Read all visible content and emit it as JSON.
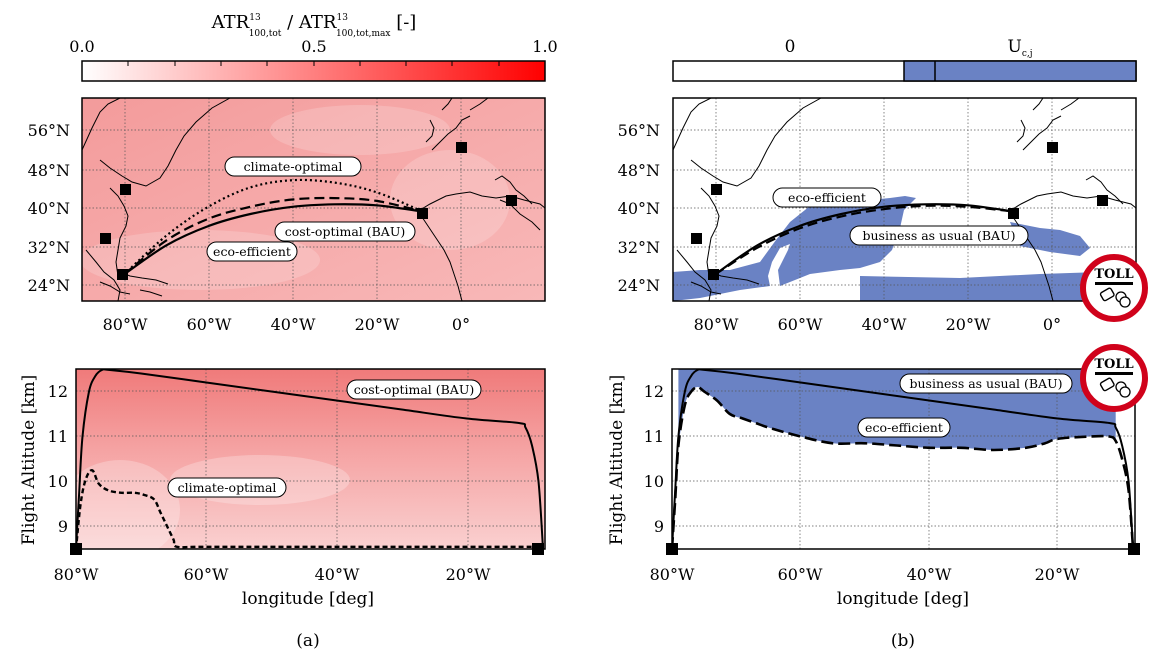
{
  "panel_a": {
    "caption": "(a)",
    "colorbar": {
      "label_main": "ATR",
      "label_sup": "13",
      "label_sub": "100,tot",
      "label_sep": " / ATR",
      "label_sup2": "13",
      "label_sub2": "100,tot,max",
      "label_unit": " [-]",
      "ticks": [
        "0.0",
        "0.5",
        "1.0"
      ],
      "range": [
        0,
        1
      ],
      "color_low": "#ffffff",
      "color_high": "#ff0000"
    },
    "map": {
      "lat_ticks": [
        "56°N",
        "48°N",
        "40°N",
        "32°N",
        "24°N"
      ],
      "lon_ticks": [
        "80°W",
        "60°W",
        "40°W",
        "20°W",
        "0°"
      ],
      "labels": {
        "climate": "climate-optimal",
        "cost": "cost-optimal (BAU)",
        "eco": "eco-efficient"
      }
    },
    "profile": {
      "ylabel": "Flight Altitude [km]",
      "xlabel": "longitude [deg]",
      "y_ticks": [
        "12",
        "11",
        "10",
        "9"
      ],
      "x_ticks": [
        "80°W",
        "60°W",
        "40°W",
        "20°W"
      ],
      "labels": {
        "cost": "cost-optimal (BAU)",
        "climate": "climate-optimal"
      }
    }
  },
  "panel_b": {
    "caption": "(b)",
    "colorbar": {
      "left_label": "0",
      "right_label_main": "U",
      "right_label_sub": "c,j",
      "fill_color": "#6a82c4"
    },
    "map": {
      "lat_ticks": [
        "56°N",
        "48°N",
        "40°N",
        "32°N",
        "24°N"
      ],
      "lon_ticks": [
        "80°W",
        "60°W",
        "40°W",
        "20°W",
        "0°"
      ],
      "labels": {
        "eco": "eco-efficient",
        "bau": "business as usual (BAU)"
      }
    },
    "profile": {
      "ylabel": "Flight Altitude [km]",
      "xlabel": "longitude [deg]",
      "y_ticks": [
        "12",
        "11",
        "10",
        "9"
      ],
      "x_ticks": [
        "80°W",
        "60°W",
        "40°W",
        "20°W"
      ],
      "labels": {
        "bau": "business as usual (BAU)",
        "eco": "eco-efficient"
      }
    },
    "toll_text": "TOLL",
    "toll_icon": "hand-with-coins-icon"
  },
  "chart_data": [
    {
      "type": "line",
      "panel": "a-map",
      "xlim": [
        -90,
        20
      ],
      "ylim": [
        20,
        62
      ],
      "series": [
        {
          "name": "climate-optimal",
          "style": "dotted",
          "x": [
            -80,
            -70,
            -60,
            -50,
            -40,
            -30,
            -20,
            -9
          ],
          "y": [
            25.5,
            33.5,
            39.5,
            43.5,
            45,
            44.5,
            42.5,
            38.5
          ]
        },
        {
          "name": "cost-optimal (BAU)",
          "style": "solid",
          "x": [
            -80,
            -70,
            -60,
            -50,
            -40,
            -30,
            -20,
            -9
          ],
          "y": [
            25.5,
            31.5,
            35.5,
            38,
            39.5,
            40,
            39.8,
            38.5
          ]
        },
        {
          "name": "eco-efficient",
          "style": "dashed",
          "x": [
            -80,
            -70,
            -60,
            -50,
            -40,
            -30,
            -20,
            -9
          ],
          "y": [
            25.5,
            32.5,
            37,
            39.5,
            41,
            41.3,
            40.7,
            38.5
          ]
        }
      ]
    },
    {
      "type": "line",
      "panel": "a-profile",
      "xlim": [
        -80,
        -8
      ],
      "ylim": [
        8.5,
        12.5
      ],
      "series": [
        {
          "name": "cost-optimal (BAU)",
          "style": "solid",
          "x": [
            -80,
            -79.5,
            -79,
            -78,
            -77,
            -76,
            -75,
            -70,
            -60,
            -50,
            -40,
            -30,
            -20,
            -12,
            -11,
            -10,
            -9,
            -8.3
          ],
          "y": [
            8.5,
            9.8,
            11.0,
            12.0,
            12.35,
            12.48,
            12.48,
            12.4,
            12.2,
            12.0,
            11.8,
            11.6,
            11.4,
            11.3,
            11.2,
            10.8,
            10.0,
            8.5
          ]
        },
        {
          "name": "climate-optimal",
          "style": "dashed",
          "x": [
            -80,
            -79.3,
            -78.5,
            -77.5,
            -76.5,
            -75,
            -73,
            -71,
            -69.5,
            -68,
            -67,
            -66,
            -65,
            -64.5,
            -60,
            -40,
            -20,
            -8.3
          ],
          "y": [
            8.5,
            9.5,
            10.05,
            10.25,
            9.95,
            9.8,
            9.75,
            9.75,
            9.7,
            9.6,
            9.3,
            9.0,
            8.7,
            8.55,
            8.55,
            8.55,
            8.55,
            8.55
          ]
        }
      ]
    },
    {
      "type": "line",
      "panel": "b-map",
      "xlim": [
        -90,
        20
      ],
      "ylim": [
        20,
        62
      ],
      "series": [
        {
          "name": "business as usual (BAU)",
          "style": "solid",
          "x": [
            -80,
            -70,
            -60,
            -50,
            -40,
            -30,
            -20,
            -9
          ],
          "y": [
            25.5,
            31.5,
            35.5,
            38,
            39.5,
            40,
            39.8,
            38.5
          ]
        },
        {
          "name": "eco-efficient",
          "style": "dashed",
          "x": [
            -80,
            -70,
            -60,
            -50,
            -40,
            -30,
            -20,
            -9
          ],
          "y": [
            25.5,
            31,
            35,
            37.5,
            39,
            39.7,
            39.5,
            38.5
          ]
        }
      ]
    },
    {
      "type": "line",
      "panel": "b-profile",
      "xlim": [
        -80,
        -8
      ],
      "ylim": [
        8.5,
        12.5
      ],
      "series": [
        {
          "name": "business as usual (BAU)",
          "style": "solid",
          "x": [
            -80,
            -79.5,
            -79,
            -78,
            -77,
            -76,
            -75,
            -70,
            -60,
            -50,
            -40,
            -30,
            -20,
            -12,
            -11,
            -10,
            -9,
            -8.3
          ],
          "y": [
            8.5,
            9.8,
            11.0,
            12.0,
            12.35,
            12.48,
            12.48,
            12.4,
            12.2,
            12.0,
            11.8,
            11.6,
            11.4,
            11.3,
            11.2,
            10.8,
            10.0,
            8.5
          ]
        },
        {
          "name": "eco-efficient",
          "style": "dashed",
          "x": [
            -80,
            -79.5,
            -79,
            -78,
            -77,
            -76,
            -75,
            -73,
            -71,
            -69,
            -67,
            -65,
            -60,
            -55,
            -50,
            -45,
            -40,
            -35,
            -30,
            -25,
            -22,
            -20,
            -15,
            -12,
            -11,
            -10,
            -9,
            -8.3
          ],
          "y": [
            8.5,
            9.6,
            10.8,
            11.7,
            12.0,
            12.1,
            12.0,
            11.8,
            11.5,
            11.4,
            11.3,
            11.2,
            11.0,
            10.85,
            10.85,
            10.8,
            10.75,
            10.75,
            10.7,
            10.75,
            10.85,
            10.95,
            11.0,
            11.0,
            10.9,
            10.5,
            9.8,
            8.5
          ]
        }
      ]
    }
  ]
}
